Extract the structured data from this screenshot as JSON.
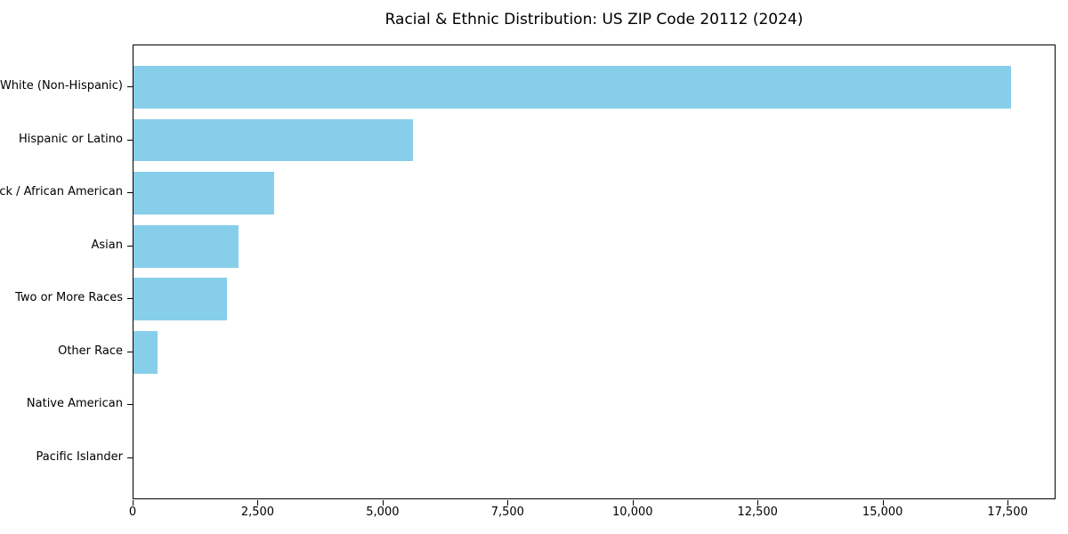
{
  "chart_data": {
    "type": "bar",
    "orientation": "horizontal",
    "title": "Racial & Ethnic Distribution: US ZIP Code 20112 (2024)",
    "categories": [
      "White (Non-Hispanic)",
      "Hispanic or Latino",
      "Black / African American",
      "Asian",
      "Two or More Races",
      "Other Race",
      "Native American",
      "Pacific Islander"
    ],
    "values": [
      17580,
      5600,
      2820,
      2100,
      1880,
      490,
      0,
      0
    ],
    "xlabel": "",
    "ylabel": "",
    "xlim": [
      0,
      18459
    ],
    "x_ticks": [
      {
        "value": 0,
        "label": "0"
      },
      {
        "value": 2500,
        "label": "2,500"
      },
      {
        "value": 5000,
        "label": "5,000"
      },
      {
        "value": 7500,
        "label": "7,500"
      },
      {
        "value": 10000,
        "label": "10,000"
      },
      {
        "value": 12500,
        "label": "12,500"
      },
      {
        "value": 15000,
        "label": "15,000"
      },
      {
        "value": 17500,
        "label": "17,500"
      }
    ],
    "bar_color": "#87CEEB",
    "background_color": "#ffffff",
    "text_color": "#000000",
    "grid": false,
    "legend_position": "none",
    "bar_height_fraction": 0.8
  }
}
